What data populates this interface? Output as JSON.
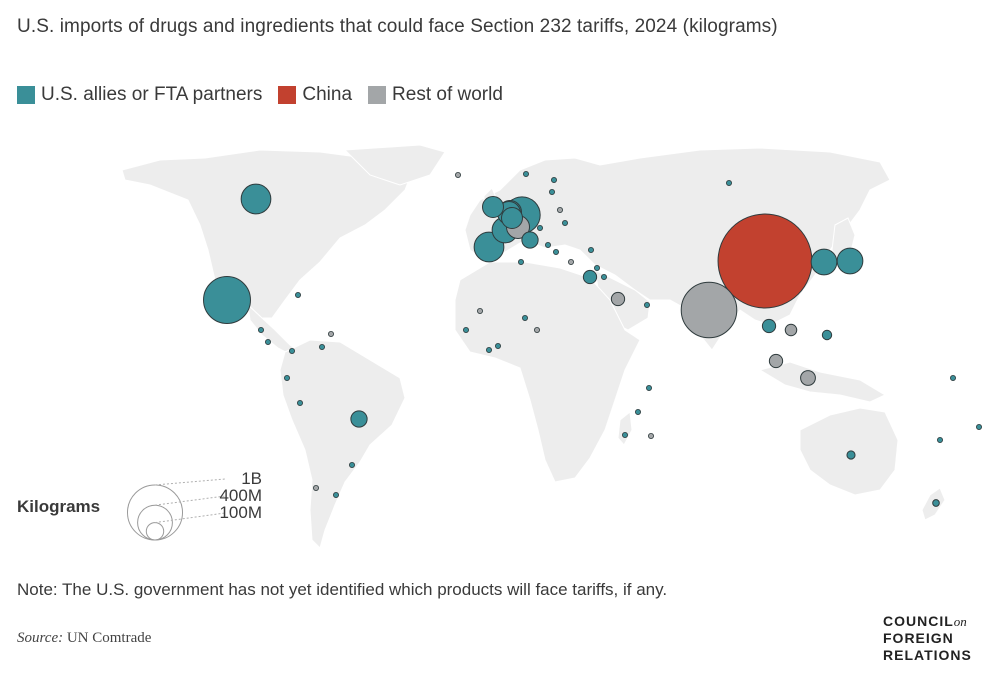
{
  "title": "U.S. imports of drugs and ingredients that could face Section 232 tariffs, 2024 (kilograms)",
  "legend": [
    {
      "label": "U.S. allies or FTA partners",
      "color": "#3a8f98"
    },
    {
      "label": "China",
      "color": "#c2412f"
    },
    {
      "label": "Rest of world",
      "color": "#a3a6a8"
    }
  ],
  "size_legend": {
    "title": "Kilograms",
    "entries": [
      {
        "label": "1B",
        "value": 1000000000
      },
      {
        "label": "400M",
        "value": 400000000
      },
      {
        "label": "100M",
        "value": 100000000
      }
    ]
  },
  "note": "Note: The U.S. government has not yet identified which products will face tariffs, if any.",
  "source": {
    "label": "Source:",
    "text": "UN Comtrade"
  },
  "logo": {
    "line1": "COUNCIL",
    "on": "on",
    "line2": "FOREIGN",
    "line3": "RELATIONS"
  },
  "colors": {
    "land": "#ededed",
    "border": "#ffffff",
    "ally": "#3a8f98",
    "china": "#c2412f",
    "rest": "#a3a6a8",
    "stroke": "#2f3b3d"
  },
  "bubbles": [
    {
      "region": "Canada",
      "group": "ally",
      "kg": 200000000
    },
    {
      "region": "Mexico",
      "group": "ally",
      "kg": 500000000
    },
    {
      "region": "China",
      "group": "china",
      "kg": 2000000000
    },
    {
      "region": "India",
      "group": "rest",
      "kg": 700000000
    },
    {
      "region": "Japan",
      "group": "ally",
      "kg": 150000000
    },
    {
      "region": "South Korea",
      "group": "ally",
      "kg": 150000000
    },
    {
      "region": "Germany",
      "group": "ally",
      "kg": 300000000
    },
    {
      "region": "France",
      "group": "ally",
      "kg": 150000000
    },
    {
      "region": "Spain",
      "group": "ally",
      "kg": 200000000
    },
    {
      "region": "Italy",
      "group": "ally",
      "kg": 60000000
    },
    {
      "region": "Switzerland",
      "group": "rest",
      "kg": 120000000
    },
    {
      "region": "Netherlands",
      "group": "ally",
      "kg": 120000000
    },
    {
      "region": "Belgium",
      "group": "ally",
      "kg": 100000000
    },
    {
      "region": "Ireland",
      "group": "ally",
      "kg": 100000000
    },
    {
      "region": "United Kingdom",
      "group": "ally",
      "kg": 120000000
    },
    {
      "region": "Brazil",
      "group": "ally",
      "kg": 60000000
    },
    {
      "region": "Israel",
      "group": "ally",
      "kg": 40000000
    },
    {
      "region": "Vietnam",
      "group": "ally",
      "kg": 40000000
    },
    {
      "region": "Thailand",
      "group": "rest",
      "kg": 40000000
    },
    {
      "region": "Malaysia",
      "group": "rest",
      "kg": 50000000
    },
    {
      "region": "Philippines",
      "group": "ally",
      "kg": 20000000
    },
    {
      "region": "Taiwan",
      "group": "rest",
      "kg": 30000000
    },
    {
      "region": "Saudi Arabia",
      "group": "rest",
      "kg": 40000000
    },
    {
      "region": "Australia",
      "group": "ally",
      "kg": 15000000
    },
    {
      "region": "New Zealand",
      "group": "ally",
      "kg": 10000000
    }
  ]
}
